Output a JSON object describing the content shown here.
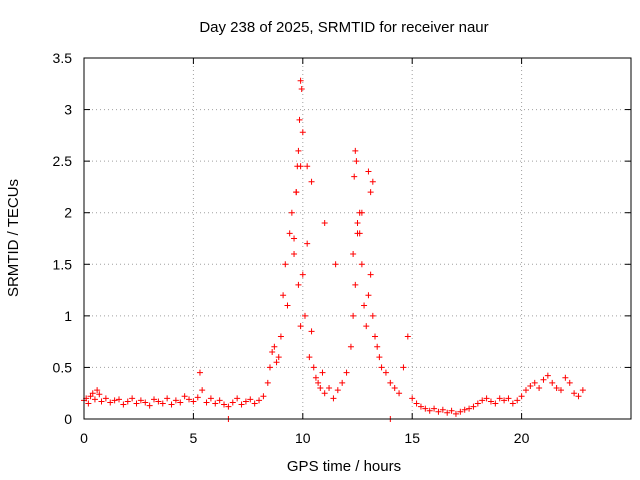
{
  "chart_data": {
    "type": "scatter",
    "title": "Day 238 of 2025, SRMTID for receiver naur",
    "xlabel": "GPS time / hours",
    "ylabel": "SRMTID / TECUs",
    "xlim": [
      0,
      25
    ],
    "ylim": [
      0,
      3.5
    ],
    "x_ticks": [
      0,
      5,
      10,
      15,
      20
    ],
    "x_tick_labels": [
      "0",
      "5",
      "10",
      "15",
      "20"
    ],
    "y_ticks": [
      0,
      0.5,
      1,
      1.5,
      2,
      2.5,
      3,
      3.5
    ],
    "y_tick_labels": [
      "0",
      "0.5",
      "1",
      "1.5",
      "2",
      "2.5",
      "3",
      "3.5"
    ],
    "grid": true,
    "marker": "+",
    "color": "#ff0000",
    "series": [
      {
        "name": "SRMTID",
        "x": [
          0.0,
          0.1,
          0.2,
          0.3,
          0.4,
          0.5,
          0.6,
          0.7,
          0.8,
          1.0,
          1.2,
          1.4,
          1.6,
          1.8,
          2.0,
          2.2,
          2.4,
          2.6,
          2.8,
          3.0,
          3.2,
          3.4,
          3.6,
          3.8,
          4.0,
          4.2,
          4.4,
          4.6,
          4.8,
          5.0,
          5.2,
          5.3,
          5.4,
          5.6,
          5.8,
          6.0,
          6.2,
          6.4,
          6.6,
          6.8,
          7.0,
          7.2,
          7.4,
          7.6,
          7.8,
          8.0,
          8.2,
          8.4,
          8.5,
          8.6,
          8.7,
          8.8,
          8.9,
          9.0,
          9.1,
          9.2,
          9.3,
          9.4,
          9.5,
          9.6,
          9.7,
          9.8,
          9.9,
          10.0,
          10.1,
          10.2,
          10.3,
          10.4,
          10.5,
          10.6,
          10.7,
          10.8,
          10.9,
          11.0,
          11.2,
          11.4,
          11.6,
          11.8,
          12.0,
          12.2,
          12.3,
          12.4,
          12.5,
          12.6,
          12.7,
          12.8,
          12.9,
          13.0,
          13.1,
          13.2,
          13.3,
          13.4,
          13.5,
          13.6,
          13.8,
          14.0,
          14.2,
          14.4,
          14.6,
          14.8,
          15.0,
          15.2,
          15.4,
          15.6,
          15.8,
          16.0,
          16.2,
          16.4,
          16.6,
          16.8,
          17.0,
          17.2,
          17.4,
          17.6,
          17.8,
          18.0,
          18.2,
          18.4,
          18.6,
          18.8,
          19.0,
          19.2,
          19.4,
          19.6,
          19.8,
          20.0,
          20.2,
          20.4,
          20.6,
          20.8,
          21.0,
          21.2,
          21.4,
          21.6,
          21.8,
          22.0,
          22.2,
          22.4,
          22.6,
          22.8,
          9.75,
          9.8,
          9.85,
          9.9,
          9.95,
          10.0,
          9.9,
          9.7,
          9.6,
          10.2,
          10.4,
          12.35,
          12.4,
          12.45,
          12.5,
          12.6,
          12.7,
          13.0,
          13.1,
          13.2,
          12.3,
          11.0,
          11.5,
          6.6,
          14.0
        ],
        "y": [
          0.18,
          0.2,
          0.15,
          0.22,
          0.25,
          0.19,
          0.28,
          0.24,
          0.17,
          0.2,
          0.16,
          0.18,
          0.19,
          0.14,
          0.17,
          0.2,
          0.15,
          0.18,
          0.16,
          0.13,
          0.19,
          0.17,
          0.15,
          0.2,
          0.14,
          0.18,
          0.16,
          0.22,
          0.19,
          0.17,
          0.21,
          0.45,
          0.28,
          0.16,
          0.2,
          0.15,
          0.18,
          0.14,
          0.12,
          0.16,
          0.2,
          0.14,
          0.17,
          0.19,
          0.15,
          0.18,
          0.22,
          0.35,
          0.5,
          0.65,
          0.7,
          0.55,
          0.6,
          0.8,
          1.2,
          1.5,
          1.1,
          1.8,
          2.0,
          1.6,
          2.2,
          1.3,
          0.9,
          1.4,
          1.0,
          1.7,
          0.6,
          0.85,
          0.5,
          0.4,
          0.35,
          0.3,
          0.45,
          0.25,
          0.3,
          0.2,
          0.28,
          0.35,
          0.45,
          0.7,
          1.0,
          1.3,
          1.8,
          2.0,
          1.5,
          1.1,
          0.9,
          1.2,
          1.4,
          1.0,
          0.8,
          0.7,
          0.6,
          0.5,
          0.45,
          0.35,
          0.3,
          0.25,
          0.5,
          0.8,
          0.2,
          0.15,
          0.12,
          0.1,
          0.08,
          0.1,
          0.07,
          0.09,
          0.06,
          0.08,
          0.05,
          0.07,
          0.09,
          0.1,
          0.12,
          0.15,
          0.18,
          0.2,
          0.17,
          0.15,
          0.2,
          0.18,
          0.2,
          0.15,
          0.18,
          0.22,
          0.28,
          0.32,
          0.35,
          0.3,
          0.38,
          0.42,
          0.35,
          0.3,
          0.28,
          0.4,
          0.35,
          0.25,
          0.22,
          0.28,
          2.45,
          2.6,
          2.9,
          3.28,
          3.2,
          2.78,
          2.45,
          2.2,
          1.75,
          2.45,
          2.3,
          2.35,
          2.6,
          2.5,
          1.9,
          1.8,
          2.0,
          2.4,
          2.2,
          2.3,
          1.6,
          1.9,
          1.5,
          0.0,
          0.0
        ]
      }
    ]
  }
}
